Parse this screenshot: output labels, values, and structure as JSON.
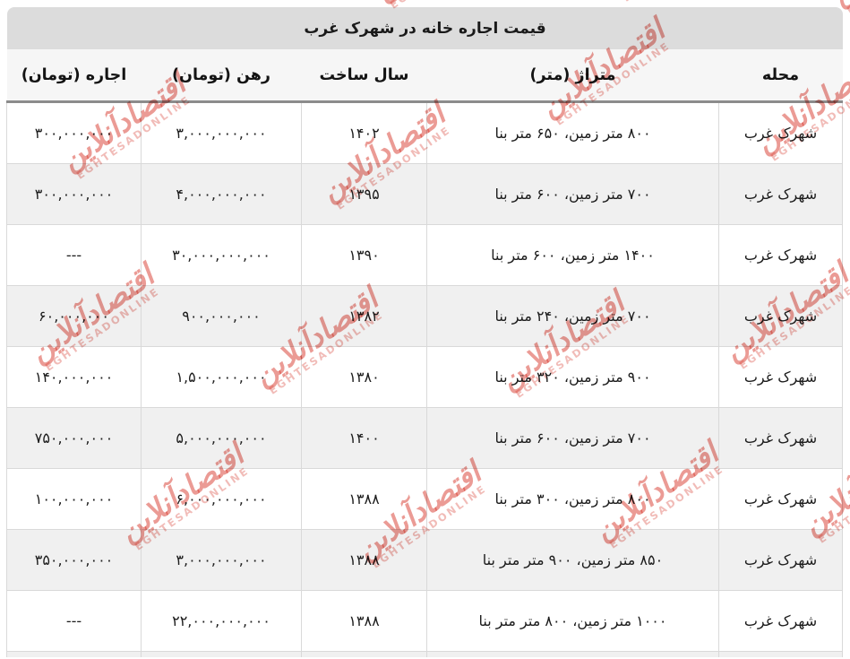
{
  "table": {
    "title": "قیمت اجاره خانه در شهرک غرب",
    "columns": [
      {
        "key": "neighborhood",
        "label": "محله"
      },
      {
        "key": "area",
        "label": "متراژ (متر)"
      },
      {
        "key": "year",
        "label": "سال ساخت"
      },
      {
        "key": "deposit",
        "label": "رهن (تومان)"
      },
      {
        "key": "rent",
        "label": "اجاره (تومان)"
      }
    ],
    "rows": [
      {
        "neighborhood": "شهرک غرب",
        "area": "۸۰۰ متر زمین، ۶۵۰ متر بنا",
        "year": "۱۴۰۲",
        "deposit": "۳,۰۰۰,۰۰۰,۰۰۰",
        "rent": "۳۰۰,۰۰۰,۰۰۰"
      },
      {
        "neighborhood": "شهرک غرب",
        "area": "۷۰۰ متر زمین، ۶۰۰ متر بنا",
        "year": "۱۳۹۵",
        "deposit": "۴,۰۰۰,۰۰۰,۰۰۰",
        "rent": "۳۰۰,۰۰۰,۰۰۰"
      },
      {
        "neighborhood": "شهرک غرب",
        "area": "۱۴۰۰ متر زمین، ۶۰۰ متر بنا",
        "year": "۱۳۹۰",
        "deposit": "۳۰,۰۰۰,۰۰۰,۰۰۰",
        "rent": "---"
      },
      {
        "neighborhood": "شهرک غرب",
        "area": "۷۰۰ متر زمین، ۲۴۰ متر بنا",
        "year": "۱۳۸۲",
        "deposit": "۹۰۰,۰۰۰,۰۰۰",
        "rent": "۶۰,۰۰۰,۰۰۰"
      },
      {
        "neighborhood": "شهرک غرب",
        "area": "۹۰۰ متر زمین، ۳۲۰ متر بنا",
        "year": "۱۳۸۰",
        "deposit": "۱,۵۰۰,۰۰۰,۰۰۰",
        "rent": "۱۴۰,۰۰۰,۰۰۰"
      },
      {
        "neighborhood": "شهرک غرب",
        "area": "۷۰۰ متر زمین، ۶۰۰ متر بنا",
        "year": "۱۴۰۰",
        "deposit": "۵,۰۰۰,۰۰۰,۰۰۰",
        "rent": "۷۵۰,۰۰۰,۰۰۰"
      },
      {
        "neighborhood": "شهرک غرب",
        "area": "۸۰۰ متر زمین، ۳۰۰ متر بنا",
        "year": "۱۳۸۸",
        "deposit": "۶,۰۰۰,۰۰۰,۰۰۰",
        "rent": "۱۰۰,۰۰۰,۰۰۰"
      },
      {
        "neighborhood": "شهرک غرب",
        "area": "۸۵۰ متر زمین، ۹۰۰ متر متر بنا",
        "year": "۱۳۸۸",
        "deposit": "۳,۰۰۰,۰۰۰,۰۰۰",
        "rent": "۳۵۰,۰۰۰,۰۰۰"
      },
      {
        "neighborhood": "شهرک غرب",
        "area": "۱۰۰۰ متر زمین، ۸۰۰ متر متر بنا",
        "year": "۱۳۸۸",
        "deposit": "۲۲,۰۰۰,۰۰۰,۰۰۰",
        "rent": "---"
      }
    ]
  },
  "watermark": {
    "text_fa": "اقتصادآنلاین",
    "text_en": "EGHTESADONLINE",
    "color": "#d7372c"
  },
  "colors": {
    "title_bar_bg": "#dcdcdc",
    "header_bg": "#f6f6f6",
    "stripe_bg": "#f0f0f0",
    "cell_border": "#d9d9d9",
    "header_underline": "#8c8c8c",
    "text": "#1c1c1c"
  }
}
